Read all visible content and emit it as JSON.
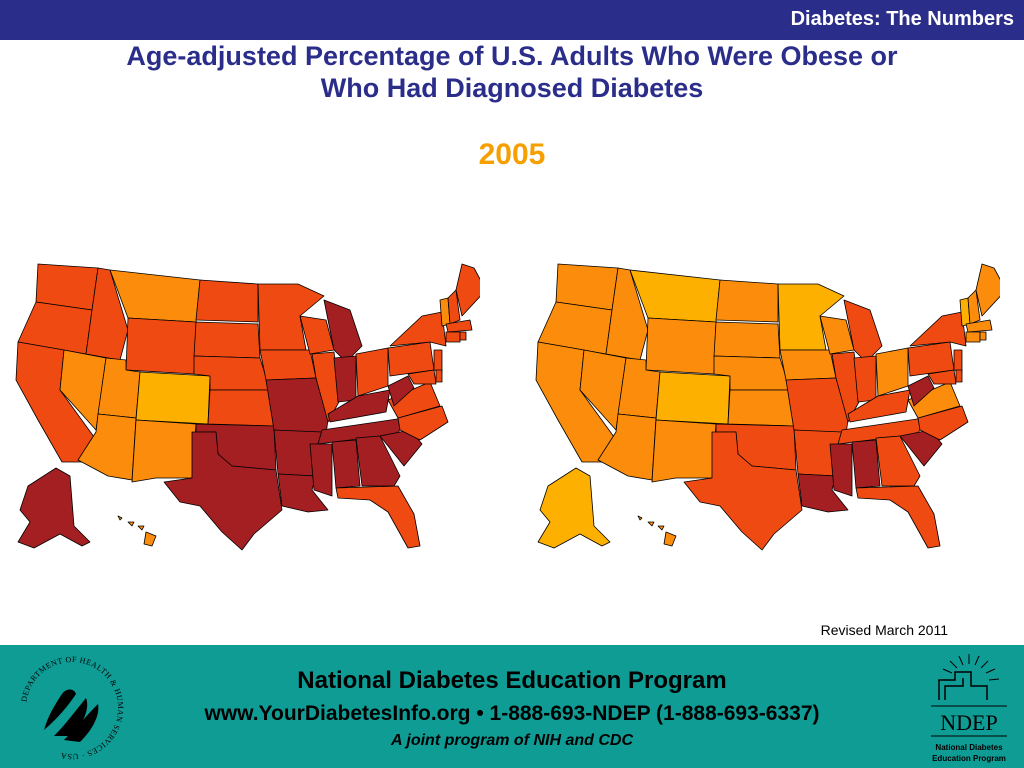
{
  "header": {
    "section_label": "Diabetes: The Numbers",
    "title_line1": "Age-adjusted Percentage of U.S. Adults Who Were Obese or",
    "title_line2": "Who Had Diagnosed Diabetes",
    "year": "2005"
  },
  "maps": {
    "left": {
      "icon": "us-choropleth-map"
    },
    "right": {
      "icon": "us-choropleth-map"
    }
  },
  "colors": {
    "dark_red": "#a31f22",
    "red_orange": "#f04a13",
    "orange": "#fb8c0c",
    "light_orange": "#fdb000",
    "header_bar": "#2b2d8a",
    "footer_bar": "#0f9c95"
  },
  "revised": "Revised March 2011",
  "footer": {
    "line1": "National Diabetes Education Program",
    "line2": "www.YourDiabetesInfo.org • 1-888-693-NDEP (1-888-693-6337)",
    "line3": "A joint program of NIH and CDC",
    "seal_text": "DEPARTMENT OF HEALTH & HUMAN SERVICES · USA",
    "ndep_logo_text": "NDEP",
    "ndep_sub1": "National Diabetes",
    "ndep_sub2": "Education Program"
  }
}
